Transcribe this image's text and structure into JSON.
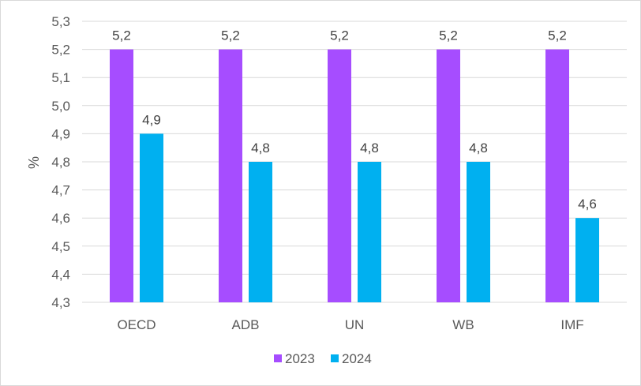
{
  "chart_data": {
    "type": "bar",
    "title": "",
    "xlabel": "",
    "ylabel": "%",
    "categories": [
      "OECD",
      "ADB",
      "UN",
      "WB",
      "IMF"
    ],
    "series": [
      {
        "name": "2023",
        "color": "#a64dff",
        "values": [
          5.2,
          5.2,
          5.2,
          5.2,
          5.2
        ],
        "labels": [
          "5,2",
          "5,2",
          "5,2",
          "5,2",
          "5,2"
        ]
      },
      {
        "name": "2024",
        "color": "#00b0f0",
        "values": [
          4.9,
          4.8,
          4.8,
          4.8,
          4.6
        ],
        "labels": [
          "4,9",
          "4,8",
          "4,8",
          "4,8",
          "4,6"
        ]
      }
    ],
    "ylim": [
      4.3,
      5.3
    ],
    "yticks": [
      4.3,
      4.4,
      4.5,
      4.6,
      4.7,
      4.8,
      4.9,
      5.0,
      5.1,
      5.2,
      5.3
    ],
    "ytick_labels": [
      "4,3",
      "4,4",
      "4,5",
      "4,6",
      "4,7",
      "4,8",
      "4,9",
      "5,0",
      "5,1",
      "5,2",
      "5,3"
    ],
    "grid": true,
    "gridline_color": "#d9d9d9",
    "legend_position": "bottom"
  }
}
